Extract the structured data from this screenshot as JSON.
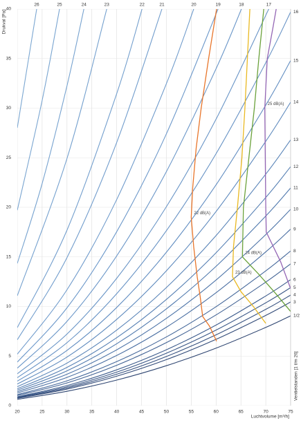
{
  "chart_data": {
    "type": "line",
    "y_label": "Drukval [Pa]",
    "x_label": "Luchtvolume [m³/h]",
    "right_label": "Ventielstanden [1 t/m 26]",
    "xlim": [
      20,
      75
    ],
    "ylim": [
      0,
      40
    ],
    "xticks": [
      20,
      25,
      30,
      35,
      40,
      45,
      50,
      55,
      60,
      65,
      70,
      75
    ],
    "yticks": [
      0,
      5,
      10,
      15,
      20,
      25,
      30,
      35,
      40
    ],
    "grid": true,
    "valve_curves": [
      {
        "name": "1/2",
        "color": "#2d4470",
        "x": [
          20,
          30,
          40,
          50,
          60,
          70,
          75
        ],
        "values": [
          0.64,
          1.45,
          2.58,
          4.03,
          5.8,
          7.89,
          9.06
        ]
      },
      {
        "name": "3",
        "color": "#314a78",
        "x": [
          20,
          30,
          40,
          50,
          60,
          70,
          75
        ],
        "values": [
          0.74,
          1.67,
          2.97,
          4.64,
          6.69,
          9.1,
          10.45
        ]
      },
      {
        "name": "4",
        "color": "#35507f",
        "x": [
          20,
          30,
          40,
          50,
          60,
          70,
          75
        ],
        "values": [
          0.79,
          1.78,
          3.17,
          4.96,
          7.14,
          9.71,
          11.15
        ]
      },
      {
        "name": "5",
        "color": "#395686",
        "x": [
          20,
          30,
          40,
          50,
          60,
          70,
          75
        ],
        "values": [
          0.85,
          1.9,
          3.38,
          5.29,
          7.62,
          10.37,
          11.9
        ]
      },
      {
        "name": "6",
        "color": "#3d5c8d",
        "x": [
          20,
          30,
          40,
          50,
          60,
          70,
          75
        ],
        "values": [
          0.9,
          2.03,
          3.61,
          5.64,
          8.13,
          11.06,
          12.7
        ]
      },
      {
        "name": "7",
        "color": "#416294",
        "x": [
          20,
          30,
          40,
          50,
          60,
          70,
          75
        ],
        "values": [
          1.02,
          2.29,
          4.07,
          6.36,
          9.15,
          12.46,
          14.3
        ]
      },
      {
        "name": "8",
        "color": "#45689b",
        "x": [
          20,
          30,
          40,
          50,
          60,
          70,
          75
        ],
        "values": [
          1.11,
          2.5,
          4.44,
          6.93,
          9.98,
          13.59,
          15.6
        ]
      },
      {
        "name": "9",
        "color": "#496ea2",
        "x": [
          20,
          30,
          40,
          50,
          60,
          70,
          75
        ],
        "values": [
          1.27,
          2.85,
          5.06,
          7.91,
          11.39,
          15.51,
          17.8
        ]
      },
      {
        "name": "10",
        "color": "#4d74a8",
        "x": [
          20,
          30,
          40,
          50,
          60,
          70,
          75
        ],
        "values": [
          1.41,
          3.17,
          5.63,
          8.8,
          12.67,
          17.25,
          19.8
        ]
      },
      {
        "name": "11",
        "color": "#517aae",
        "x": [
          20,
          30,
          40,
          50,
          60,
          70,
          75
        ],
        "values": [
          1.56,
          3.51,
          6.24,
          9.76,
          14.05,
          19.12,
          21.95
        ]
      },
      {
        "name": "12",
        "color": "#557fb3",
        "x": [
          20,
          30,
          40,
          50,
          60,
          70,
          75
        ],
        "values": [
          1.71,
          3.86,
          6.85,
          10.71,
          15.42,
          20.99,
          24.1
        ]
      },
      {
        "name": "13",
        "color": "#5984b8",
        "x": [
          20,
          30,
          40,
          50,
          60,
          70,
          75
        ],
        "values": [
          1.91,
          4.29,
          7.62,
          11.91,
          17.15,
          23.35,
          26.8
        ]
      },
      {
        "name": "14",
        "color": "#5d89bd",
        "x": [
          20,
          30,
          40,
          50,
          60,
          70,
          75
        ],
        "values": [
          2.18,
          4.9,
          8.7,
          13.6,
          19.58,
          26.66,
          30.6
        ]
      },
      {
        "name": "15",
        "color": "#618dc1",
        "x": [
          20,
          30,
          40,
          50,
          60,
          70,
          75
        ],
        "values": [
          2.47,
          5.57,
          9.9,
          15.47,
          22.27,
          30.31,
          34.8
        ]
      },
      {
        "name": "16",
        "color": "#6591c4",
        "x": [
          20,
          30,
          40,
          50,
          60,
          70,
          75
        ],
        "values": [
          2.82,
          6.35,
          11.29,
          17.64,
          25.41,
          34.58,
          39.7
        ]
      },
      {
        "name": "17",
        "color": "#6894c6",
        "x": [
          20,
          30,
          40,
          50,
          60,
          70.6
        ],
        "values": [
          3.21,
          7.22,
          12.84,
          20.06,
          28.89,
          40
        ]
      },
      {
        "name": "18",
        "color": "#6a96c8",
        "x": [
          20,
          30,
          40,
          50,
          60,
          65.1
        ],
        "values": [
          3.78,
          8.5,
          15.1,
          23.6,
          33.98,
          40
        ]
      },
      {
        "name": "19",
        "color": "#6c98ca",
        "x": [
          20,
          30,
          40,
          50,
          60.4
        ],
        "values": [
          4.39,
          9.87,
          17.54,
          27.41,
          40
        ]
      },
      {
        "name": "20",
        "color": "#6e9acb",
        "x": [
          20,
          30,
          40,
          50,
          55.5
        ],
        "values": [
          5.19,
          11.69,
          20.78,
          32.47,
          40
        ]
      },
      {
        "name": "21",
        "color": "#709ccc",
        "x": [
          20,
          30,
          40,
          49.1
        ],
        "values": [
          6.64,
          14.93,
          26.54,
          40
        ]
      },
      {
        "name": "22",
        "color": "#729ecd",
        "x": [
          20,
          30,
          40,
          45.1
        ],
        "values": [
          7.87,
          17.7,
          31.46,
          40
        ]
      },
      {
        "name": "23",
        "color": "#74a0ce",
        "x": [
          20,
          30,
          38
        ],
        "values": [
          11.08,
          24.93,
          40
        ]
      },
      {
        "name": "24",
        "color": "#76a2cf",
        "x": [
          20,
          25,
          30,
          33.4
        ],
        "values": [
          14.34,
          22.4,
          32.26,
          40
        ]
      },
      {
        "name": "25",
        "color": "#78a4d0",
        "x": [
          20,
          25,
          28.5
        ],
        "values": [
          19.7,
          30.78,
          40
        ]
      },
      {
        "name": "26",
        "color": "#7aa6d1",
        "x": [
          20,
          23.9
        ],
        "values": [
          28.01,
          40
        ]
      }
    ],
    "noise_curves": [
      {
        "name": "22 dB(A)",
        "color": "#e8752a",
        "x": [
          60.1,
          58.7,
          57.3,
          56.8,
          56.2,
          55.5,
          55,
          55.3,
          56,
          57,
          58.5,
          60.1
        ],
        "values": [
          6.5,
          8,
          9,
          11,
          13,
          16,
          19,
          22,
          26,
          30,
          35,
          40
        ]
      },
      {
        "name": "23 dB(A)",
        "color": "#e9b820",
        "x": [
          70,
          67.5,
          65,
          63.3,
          63.5,
          64.3,
          65.2,
          65.8,
          66.3,
          66.8
        ],
        "values": [
          8.3,
          10,
          11.5,
          13,
          16,
          20,
          25,
          30,
          35,
          40
        ]
      },
      {
        "name": "24 dB(A)",
        "color": "#6aa13a",
        "x": [
          75,
          72,
          68.5,
          65.3,
          65.5,
          66.6,
          67.7,
          68.6,
          69.6
        ],
        "values": [
          9.5,
          11.3,
          13.3,
          15,
          20,
          25,
          30,
          35,
          40
        ]
      },
      {
        "name": "25 dB(A)",
        "color": "#9466b5",
        "x": [
          75,
          73,
          70.1,
          70,
          69.9,
          69.8,
          70.3,
          71.4,
          72.1
        ],
        "values": [
          11.8,
          14.5,
          17.5,
          20,
          25,
          30,
          35,
          38,
          40
        ]
      }
    ]
  }
}
